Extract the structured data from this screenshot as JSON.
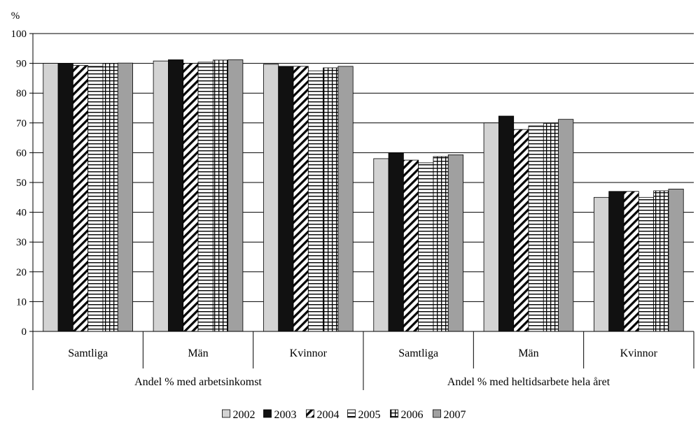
{
  "chart_data": {
    "type": "bar",
    "ylabel": "%",
    "ylim": [
      0,
      100
    ],
    "yticks": [
      0,
      10,
      20,
      30,
      40,
      50,
      60,
      70,
      80,
      90,
      100
    ],
    "grid": true,
    "legend_position": "bottom",
    "groups": [
      "Andel % med arbetsinkomst",
      "Andel % med heltidsarbete hela året"
    ],
    "categories": [
      "Samtliga",
      "Män",
      "Kvinnor",
      "Samtliga",
      "Män",
      "Kvinnor"
    ],
    "series": [
      {
        "name": "2002",
        "color": "#d3d3d3",
        "pattern": "solid-light",
        "values": [
          90,
          90.8,
          89.7,
          58,
          70,
          45
        ]
      },
      {
        "name": "2003",
        "color": "#111111",
        "pattern": "solid-black",
        "values": [
          90,
          91.2,
          89,
          60,
          72.3,
          47
        ]
      },
      {
        "name": "2004",
        "color": "#ffffff",
        "pattern": "diagonal",
        "values": [
          89.3,
          90,
          89,
          57.5,
          67.8,
          47
        ]
      },
      {
        "name": "2005",
        "color": "#ffffff",
        "pattern": "horizontal",
        "values": [
          89,
          90.4,
          87.5,
          56.6,
          69,
          45
        ]
      },
      {
        "name": "2006",
        "color": "#ffffff",
        "pattern": "grid",
        "values": [
          90,
          91.1,
          88.5,
          58.7,
          69.8,
          47.2
        ]
      },
      {
        "name": "2007",
        "color": "#a0a0a0",
        "pattern": "solid-grey",
        "values": [
          90.1,
          91.2,
          89,
          59.3,
          71.2,
          47.8
        ]
      }
    ]
  }
}
